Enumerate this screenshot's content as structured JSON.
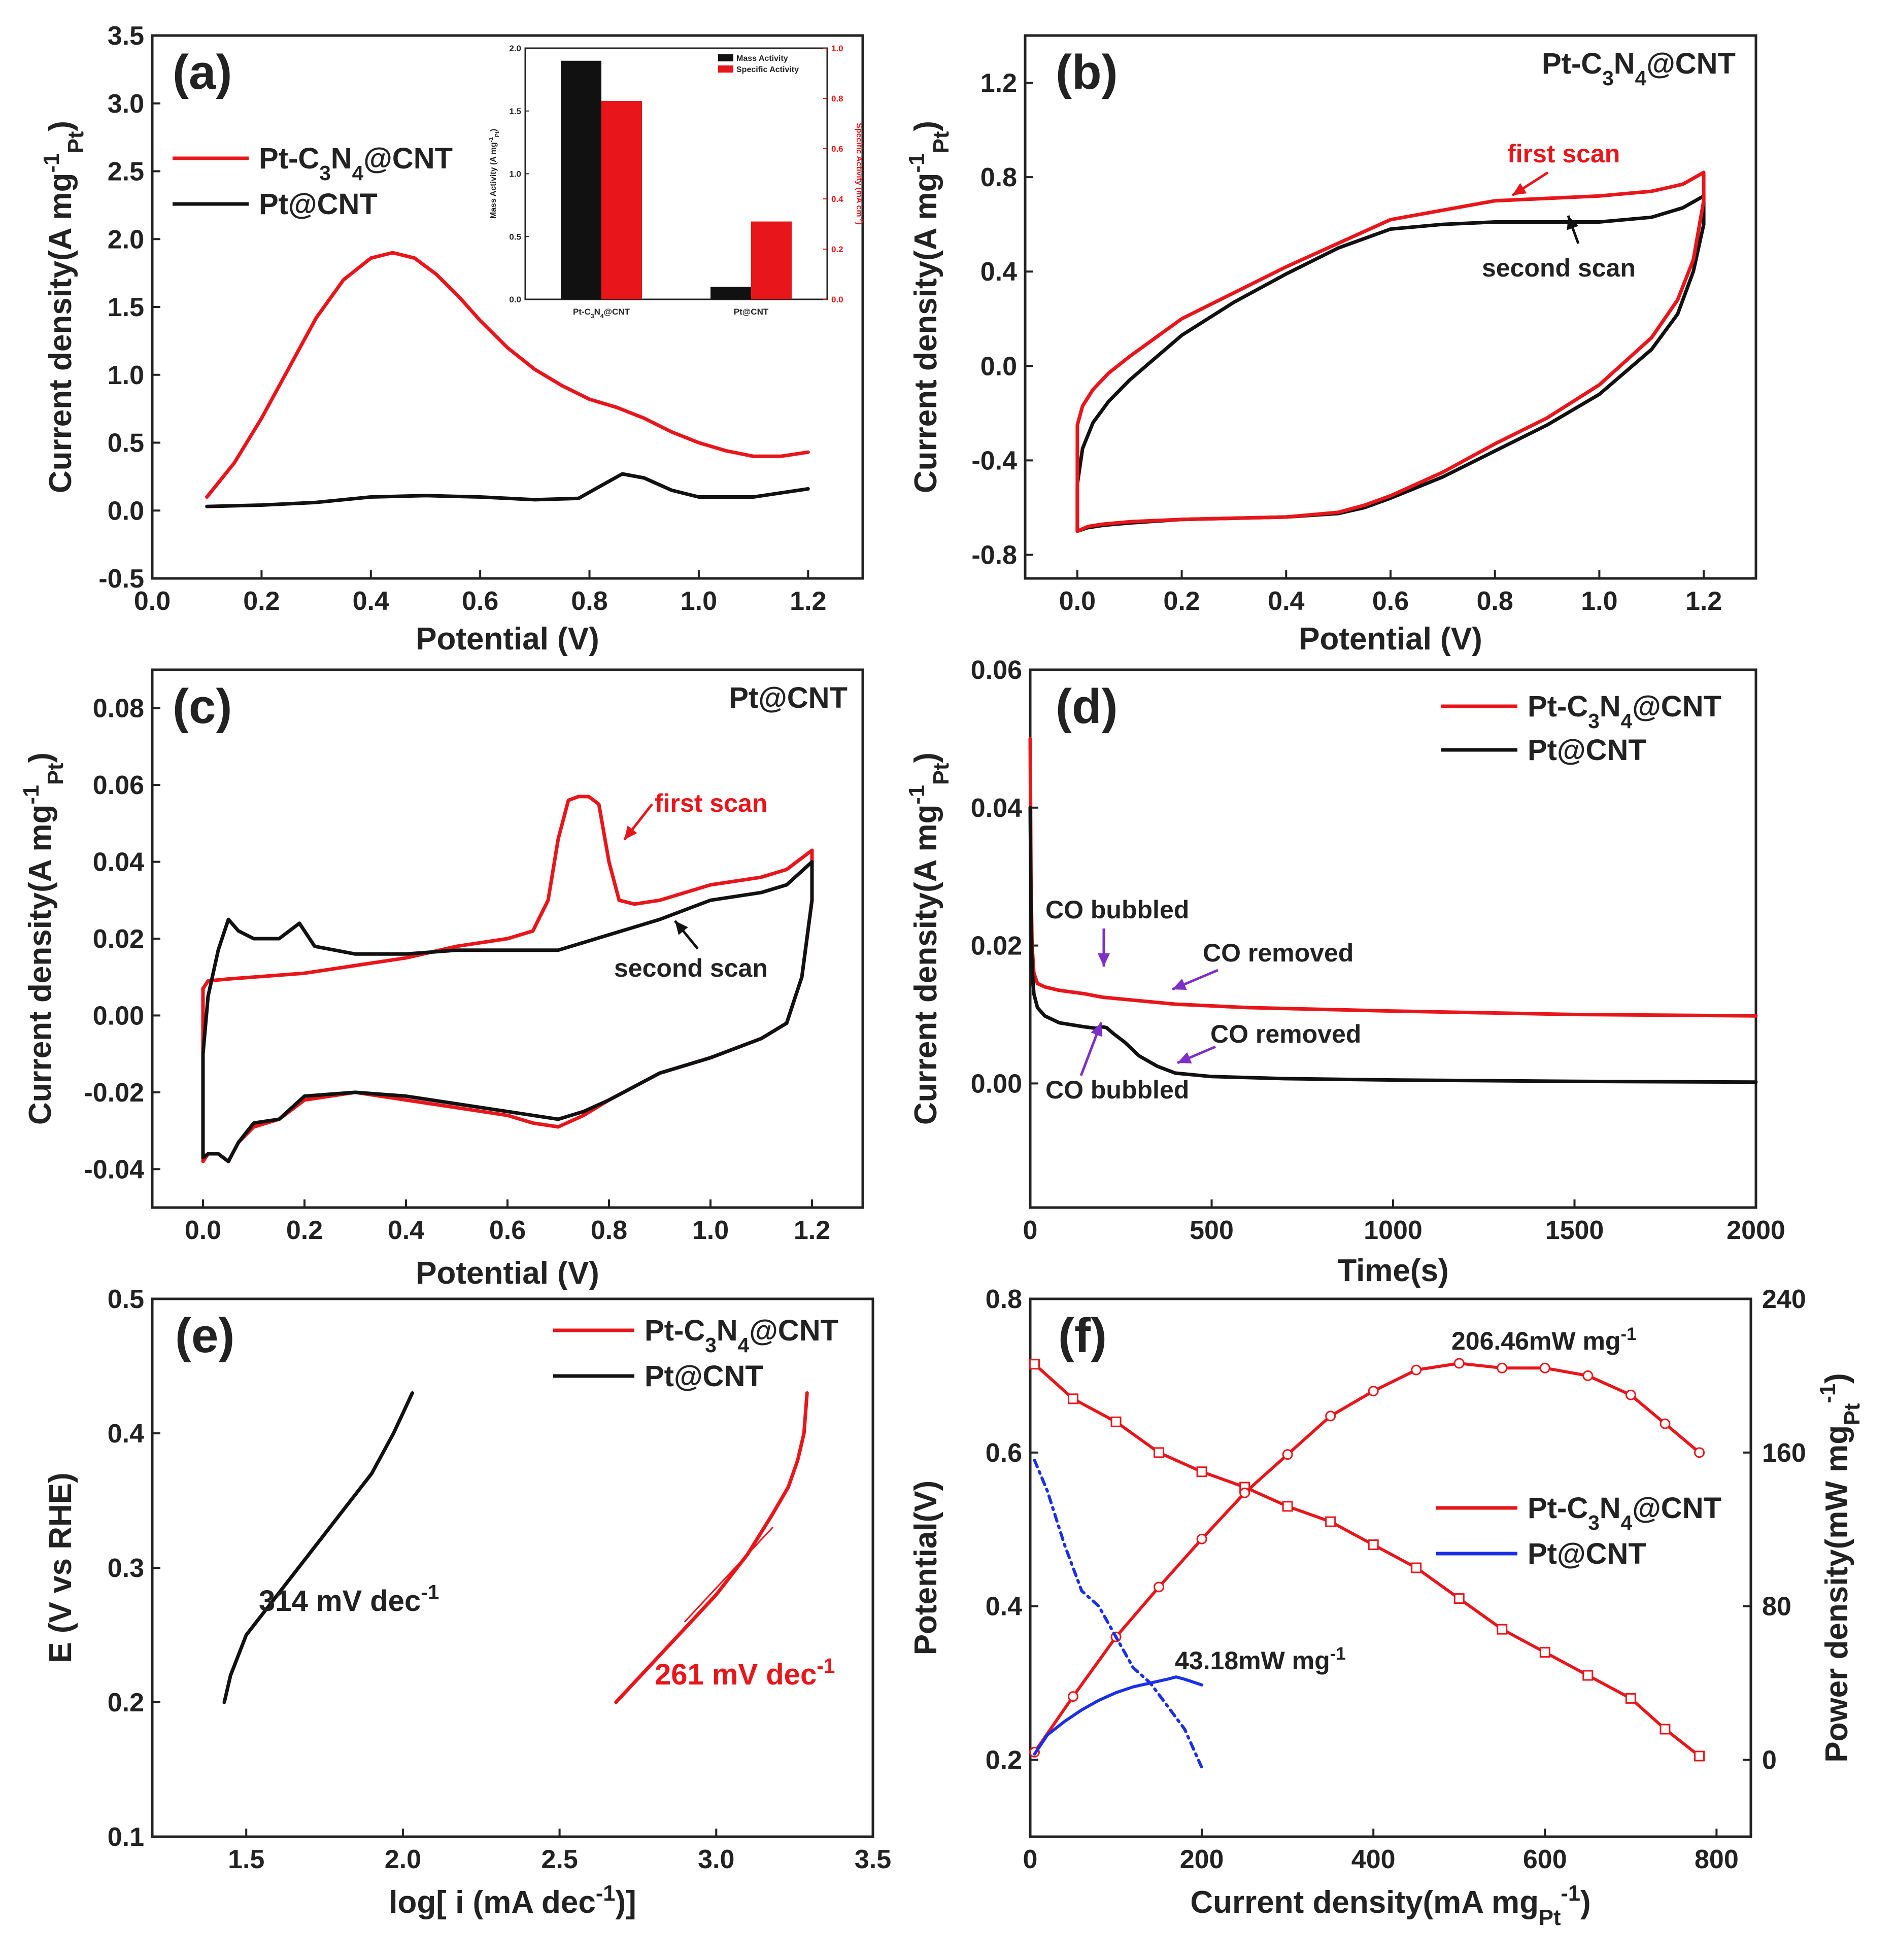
{
  "colors": {
    "red": "#e8161b",
    "black": "#111111",
    "blue": "#1a2fe6",
    "purple": "#7d2fc8",
    "axis": "#222222"
  },
  "chart_data": [
    {
      "id": "a",
      "type": "line",
      "label": "(a)",
      "xlabel": "Potential (V)",
      "ylabel": "Current density(A mg-1Pt)",
      "ylabel_parts": {
        "main": "Current density(A mg",
        "sup": "-1",
        "sub": "Pt",
        "close": ")"
      },
      "xlim": [
        0,
        1.3
      ],
      "ylim": [
        -0.5,
        3.5
      ],
      "xticks": [
        "0.0",
        "0.2",
        "0.4",
        "0.6",
        "0.8",
        "1.0",
        "1.2"
      ],
      "yticks": [
        "-0.5",
        "0.0",
        "0.5",
        "1.0",
        "1.5",
        "2.0",
        "2.5",
        "3.0",
        "3.5"
      ],
      "legend": [
        "Pt-C3N4@CNT",
        "Pt@CNT"
      ],
      "series": [
        {
          "name": "Pt-C3N4@CNT",
          "color": "red",
          "x": [
            0.1,
            0.15,
            0.2,
            0.25,
            0.3,
            0.35,
            0.4,
            0.44,
            0.48,
            0.52,
            0.56,
            0.6,
            0.65,
            0.7,
            0.75,
            0.8,
            0.85,
            0.9,
            0.95,
            1.0,
            1.05,
            1.1,
            1.15,
            1.2
          ],
          "y": [
            0.1,
            0.35,
            0.68,
            1.05,
            1.42,
            1.7,
            1.86,
            1.9,
            1.86,
            1.74,
            1.58,
            1.4,
            1.2,
            1.04,
            0.92,
            0.82,
            0.76,
            0.68,
            0.58,
            0.5,
            0.44,
            0.4,
            0.4,
            0.43
          ]
        },
        {
          "name": "Pt@CNT",
          "color": "black",
          "x": [
            0.1,
            0.2,
            0.3,
            0.4,
            0.5,
            0.6,
            0.7,
            0.78,
            0.82,
            0.86,
            0.9,
            0.95,
            1.0,
            1.1,
            1.2
          ],
          "y": [
            0.03,
            0.04,
            0.06,
            0.1,
            0.11,
            0.1,
            0.08,
            0.09,
            0.18,
            0.27,
            0.24,
            0.15,
            0.1,
            0.1,
            0.16
          ]
        }
      ],
      "inset": {
        "type": "bar",
        "categories": [
          "Pt-C3N4@CNT",
          "Pt@CNT"
        ],
        "ylabel_left": "Mass Activity (A mg-1Pt)",
        "ylabel_right": "Specific Activity (mA cm-2)",
        "ylim_left": [
          0,
          2.0
        ],
        "ylim_right": [
          0,
          1.0
        ],
        "yticks_left": [
          "0.0",
          "0.5",
          "1.0",
          "1.5",
          "2.0"
        ],
        "yticks_right": [
          "0.0",
          "0.2",
          "0.4",
          "0.6",
          "0.8",
          "1.0"
        ],
        "legend": [
          "Mass Activity",
          "Specific Activity"
        ],
        "mass_activity": [
          1.9,
          0.1
        ],
        "specific_activity": [
          0.79,
          0.31
        ]
      }
    },
    {
      "id": "b",
      "type": "line",
      "label": "(b)",
      "title": "Pt-C3N4@CNT",
      "xlabel": "Potential (V)",
      "ylabel": "Current density(A mg-1Pt)",
      "ylabel_parts": {
        "main": "Current density(A mg",
        "sup": "-1",
        "sub": "Pt",
        "close": ")"
      },
      "xlim": [
        -0.1,
        1.3
      ],
      "ylim": [
        -0.9,
        1.4
      ],
      "xticks": [
        "0.0",
        "0.2",
        "0.4",
        "0.6",
        "0.8",
        "1.0",
        "1.2"
      ],
      "yticks": [
        "-0.8",
        "-0.4",
        "0.0",
        "0.4",
        "0.8",
        "1.2"
      ],
      "annotations": [
        "first scan",
        "second scan"
      ],
      "series": [
        {
          "name": "first scan",
          "color": "red",
          "x": [
            0.0,
            0.0,
            0.01,
            0.03,
            0.06,
            0.1,
            0.2,
            0.3,
            0.4,
            0.5,
            0.6,
            0.7,
            0.8,
            0.9,
            1.0,
            1.1,
            1.16,
            1.2,
            1.2,
            1.18,
            1.15,
            1.1,
            1.0,
            0.9,
            0.8,
            0.7,
            0.6,
            0.55,
            0.5,
            0.4,
            0.3,
            0.2,
            0.1,
            0.05,
            0.02,
            0.0
          ],
          "y": [
            -0.7,
            -0.25,
            -0.17,
            -0.1,
            -0.03,
            0.04,
            0.2,
            0.31,
            0.42,
            0.52,
            0.62,
            0.66,
            0.7,
            0.71,
            0.72,
            0.74,
            0.77,
            0.82,
            0.7,
            0.45,
            0.28,
            0.12,
            -0.08,
            -0.22,
            -0.33,
            -0.45,
            -0.55,
            -0.59,
            -0.62,
            -0.64,
            -0.645,
            -0.65,
            -0.66,
            -0.67,
            -0.68,
            -0.7
          ]
        },
        {
          "name": "second scan",
          "color": "black",
          "x": [
            0.0,
            0.0,
            0.01,
            0.03,
            0.06,
            0.1,
            0.2,
            0.3,
            0.4,
            0.5,
            0.6,
            0.7,
            0.8,
            0.9,
            1.0,
            1.1,
            1.16,
            1.2,
            1.2,
            1.18,
            1.15,
            1.1,
            1.0,
            0.9,
            0.8,
            0.7,
            0.6,
            0.55,
            0.5,
            0.4,
            0.3,
            0.2,
            0.1,
            0.05,
            0.02,
            0.0
          ],
          "y": [
            -0.7,
            -0.5,
            -0.35,
            -0.24,
            -0.15,
            -0.06,
            0.13,
            0.27,
            0.39,
            0.5,
            0.58,
            0.6,
            0.61,
            0.61,
            0.61,
            0.63,
            0.67,
            0.72,
            0.6,
            0.4,
            0.22,
            0.07,
            -0.12,
            -0.25,
            -0.36,
            -0.47,
            -0.56,
            -0.6,
            -0.625,
            -0.64,
            -0.645,
            -0.65,
            -0.665,
            -0.675,
            -0.685,
            -0.7
          ]
        }
      ]
    },
    {
      "id": "c",
      "type": "line",
      "label": "(c)",
      "title": "Pt@CNT",
      "xlabel": "Potential (V)",
      "ylabel": "Current density(A mg-1Pt)",
      "ylabel_parts": {
        "main": "Current density(A mg",
        "sup": "-1",
        "sub": "Pt",
        "close": ")"
      },
      "xlim": [
        -0.1,
        1.3
      ],
      "ylim": [
        -0.05,
        0.09
      ],
      "xticks": [
        "0.0",
        "0.2",
        "0.4",
        "0.6",
        "0.8",
        "1.0",
        "1.2"
      ],
      "yticks": [
        "-0.04",
        "-0.02",
        "0.00",
        "0.02",
        "0.04",
        "0.06",
        "0.08"
      ],
      "annotations": [
        "first scan",
        "second scan"
      ],
      "series": [
        {
          "name": "first scan",
          "color": "red",
          "x": [
            0.0,
            0.0,
            0.01,
            0.05,
            0.1,
            0.2,
            0.3,
            0.4,
            0.5,
            0.6,
            0.65,
            0.68,
            0.7,
            0.72,
            0.74,
            0.76,
            0.78,
            0.8,
            0.82,
            0.85,
            0.9,
            1.0,
            1.1,
            1.15,
            1.2,
            1.2,
            1.18,
            1.15,
            1.1,
            1.0,
            0.9,
            0.8,
            0.75,
            0.7,
            0.65,
            0.6,
            0.5,
            0.4,
            0.3,
            0.2,
            0.15,
            0.1,
            0.07,
            0.05,
            0.03,
            0.01,
            0.0
          ],
          "y": [
            -0.038,
            0.007,
            0.009,
            0.0095,
            0.01,
            0.011,
            0.013,
            0.015,
            0.018,
            0.02,
            0.022,
            0.03,
            0.046,
            0.056,
            0.057,
            0.057,
            0.055,
            0.04,
            0.03,
            0.029,
            0.03,
            0.034,
            0.036,
            0.038,
            0.043,
            0.03,
            0.01,
            -0.002,
            -0.006,
            -0.011,
            -0.015,
            -0.022,
            -0.026,
            -0.029,
            -0.028,
            -0.026,
            -0.024,
            -0.022,
            -0.02,
            -0.022,
            -0.027,
            -0.029,
            -0.033,
            -0.038,
            -0.036,
            -0.036,
            -0.038
          ]
        },
        {
          "name": "second scan",
          "color": "black",
          "x": [
            0.0,
            0.0,
            0.01,
            0.03,
            0.05,
            0.07,
            0.1,
            0.15,
            0.19,
            0.22,
            0.3,
            0.4,
            0.5,
            0.6,
            0.7,
            0.8,
            0.9,
            1.0,
            1.1,
            1.15,
            1.2,
            1.2,
            1.18,
            1.15,
            1.1,
            1.0,
            0.9,
            0.8,
            0.75,
            0.7,
            0.65,
            0.6,
            0.5,
            0.4,
            0.3,
            0.2,
            0.15,
            0.1,
            0.07,
            0.05,
            0.03,
            0.01,
            0.0
          ],
          "y": [
            -0.037,
            -0.01,
            0.005,
            0.017,
            0.025,
            0.022,
            0.02,
            0.02,
            0.024,
            0.018,
            0.016,
            0.016,
            0.017,
            0.017,
            0.017,
            0.021,
            0.025,
            0.03,
            0.032,
            0.034,
            0.04,
            0.03,
            0.01,
            -0.002,
            -0.006,
            -0.011,
            -0.015,
            -0.022,
            -0.025,
            -0.027,
            -0.026,
            -0.025,
            -0.023,
            -0.021,
            -0.02,
            -0.021,
            -0.027,
            -0.028,
            -0.033,
            -0.038,
            -0.036,
            -0.036,
            -0.037
          ]
        }
      ]
    },
    {
      "id": "d",
      "type": "line",
      "label": "(d)",
      "xlabel": "Time(s)",
      "ylabel": "Current density(A mg-1Pt)",
      "ylabel_parts": {
        "main": "Current density(A mg",
        "sup": "-1",
        "sub": "Pt",
        "close": ")"
      },
      "xlim": [
        0,
        2000
      ],
      "ylim": [
        -0.018,
        0.06
      ],
      "xticks": [
        "0",
        "500",
        "1000",
        "1500",
        "2000"
      ],
      "yticks": [
        "0.00",
        "0.02",
        "0.04",
        "0.06"
      ],
      "legend": [
        "Pt-C3N4@CNT",
        "Pt@CNT"
      ],
      "annotations": [
        "CO bubbled",
        "CO removed",
        "CO removed",
        "CO bubbled"
      ],
      "series": [
        {
          "name": "Pt-C3N4@CNT",
          "color": "red",
          "x": [
            0,
            2,
            5,
            10,
            20,
            40,
            80,
            150,
            200,
            300,
            400,
            600,
            1000,
            1500,
            2000
          ],
          "y": [
            0.05,
            0.03,
            0.02,
            0.016,
            0.0145,
            0.014,
            0.0135,
            0.013,
            0.0125,
            0.012,
            0.0115,
            0.011,
            0.0105,
            0.01,
            0.0098
          ]
        },
        {
          "name": "Pt@CNT",
          "color": "black",
          "x": [
            0,
            2,
            5,
            10,
            20,
            40,
            80,
            150,
            180,
            200,
            210,
            230,
            260,
            300,
            350,
            400,
            500,
            700,
            1000,
            1500,
            2000
          ],
          "y": [
            0.04,
            0.026,
            0.017,
            0.013,
            0.011,
            0.0098,
            0.0088,
            0.0082,
            0.008,
            0.0082,
            0.0081,
            0.0072,
            0.006,
            0.004,
            0.0025,
            0.0015,
            0.001,
            0.0007,
            0.0005,
            0.0003,
            0.0002
          ]
        }
      ]
    },
    {
      "id": "e",
      "type": "line",
      "label": "(e)",
      "xlabel": "log[ i (mA dec-1)]",
      "ylabel": "E (V vs RHE)",
      "xlim": [
        1.2,
        3.5
      ],
      "ylim": [
        0.1,
        0.5
      ],
      "xticks": [
        "1.5",
        "2.0",
        "2.5",
        "3.0",
        "3.5"
      ],
      "yticks": [
        "0.1",
        "0.2",
        "0.3",
        "0.4",
        "0.5"
      ],
      "legend": [
        "Pt-C3N4@CNT",
        "Pt@CNT"
      ],
      "annotations": [
        "314 mV dec-1",
        "261 mV dec-1"
      ],
      "series": [
        {
          "name": "Pt-C3N4@CNT",
          "color": "red",
          "x": [
            2.68,
            2.8,
            2.9,
            3.0,
            3.1,
            3.18,
            3.23,
            3.26,
            3.28,
            3.29
          ],
          "y": [
            0.2,
            0.23,
            0.255,
            0.28,
            0.31,
            0.34,
            0.36,
            0.38,
            0.4,
            0.43
          ]
        },
        {
          "name": "Pt@CNT",
          "color": "black",
          "x": [
            1.43,
            1.45,
            1.5,
            1.6,
            1.7,
            1.8,
            1.9,
            1.97,
            2.0,
            2.03
          ],
          "y": [
            0.2,
            0.22,
            0.25,
            0.28,
            0.31,
            0.34,
            0.37,
            0.4,
            0.415,
            0.43
          ]
        }
      ]
    },
    {
      "id": "f",
      "type": "line",
      "label": "(f)",
      "xlabel": "Current density(mA mgPt-1)",
      "ylabel": "Potential(V)",
      "ylabel_right": "Power density(mW mgPt-1)",
      "xlim": [
        0,
        840
      ],
      "ylim": [
        0.1,
        0.8
      ],
      "ylim_right": [
        -40,
        240
      ],
      "xticks": [
        "0",
        "200",
        "400",
        "600",
        "800"
      ],
      "yticks": [
        "0.2",
        "0.4",
        "0.6",
        "0.8"
      ],
      "yticks_right": [
        "0",
        "80",
        "160",
        "240"
      ],
      "legend": [
        "Pt-C3N4@CNT",
        "Pt@CNT"
      ],
      "annotations": [
        "206.46mW mg-1",
        "43.18mW mg-1"
      ],
      "series": [
        {
          "name": "Pt-C3N4@CNT polarization",
          "color": "red",
          "x": [
            5,
            50,
            100,
            150,
            200,
            250,
            300,
            350,
            400,
            450,
            500,
            550,
            600,
            650,
            700,
            740,
            780
          ],
          "y": [
            0.715,
            0.67,
            0.64,
            0.6,
            0.575,
            0.555,
            0.53,
            0.51,
            0.48,
            0.45,
            0.41,
            0.37,
            0.34,
            0.31,
            0.28,
            0.24,
            0.205
          ]
        },
        {
          "name": "Pt-C3N4@CNT power",
          "color": "red",
          "axis": "right",
          "x": [
            5,
            50,
            100,
            150,
            200,
            250,
            300,
            350,
            400,
            450,
            500,
            550,
            600,
            650,
            700,
            740,
            780
          ],
          "y": [
            4,
            33,
            64,
            90,
            115,
            139,
            159,
            179,
            192,
            203,
            206.46,
            204,
            204,
            200,
            190,
            175,
            160
          ]
        },
        {
          "name": "Pt@CNT polarization",
          "color": "blue",
          "x": [
            5,
            20,
            40,
            60,
            80,
            100,
            120,
            140,
            160,
            180,
            200
          ],
          "y": [
            0.59,
            0.55,
            0.48,
            0.42,
            0.4,
            0.36,
            0.32,
            0.3,
            0.27,
            0.24,
            0.19
          ]
        },
        {
          "name": "Pt@CNT power",
          "color": "blue",
          "axis": "right",
          "x": [
            5,
            20,
            40,
            60,
            80,
            100,
            120,
            140,
            160,
            170,
            180,
            200
          ],
          "y": [
            3,
            13,
            20,
            26,
            31,
            35,
            38,
            40,
            42,
            43.18,
            42,
            39
          ]
        }
      ]
    }
  ]
}
